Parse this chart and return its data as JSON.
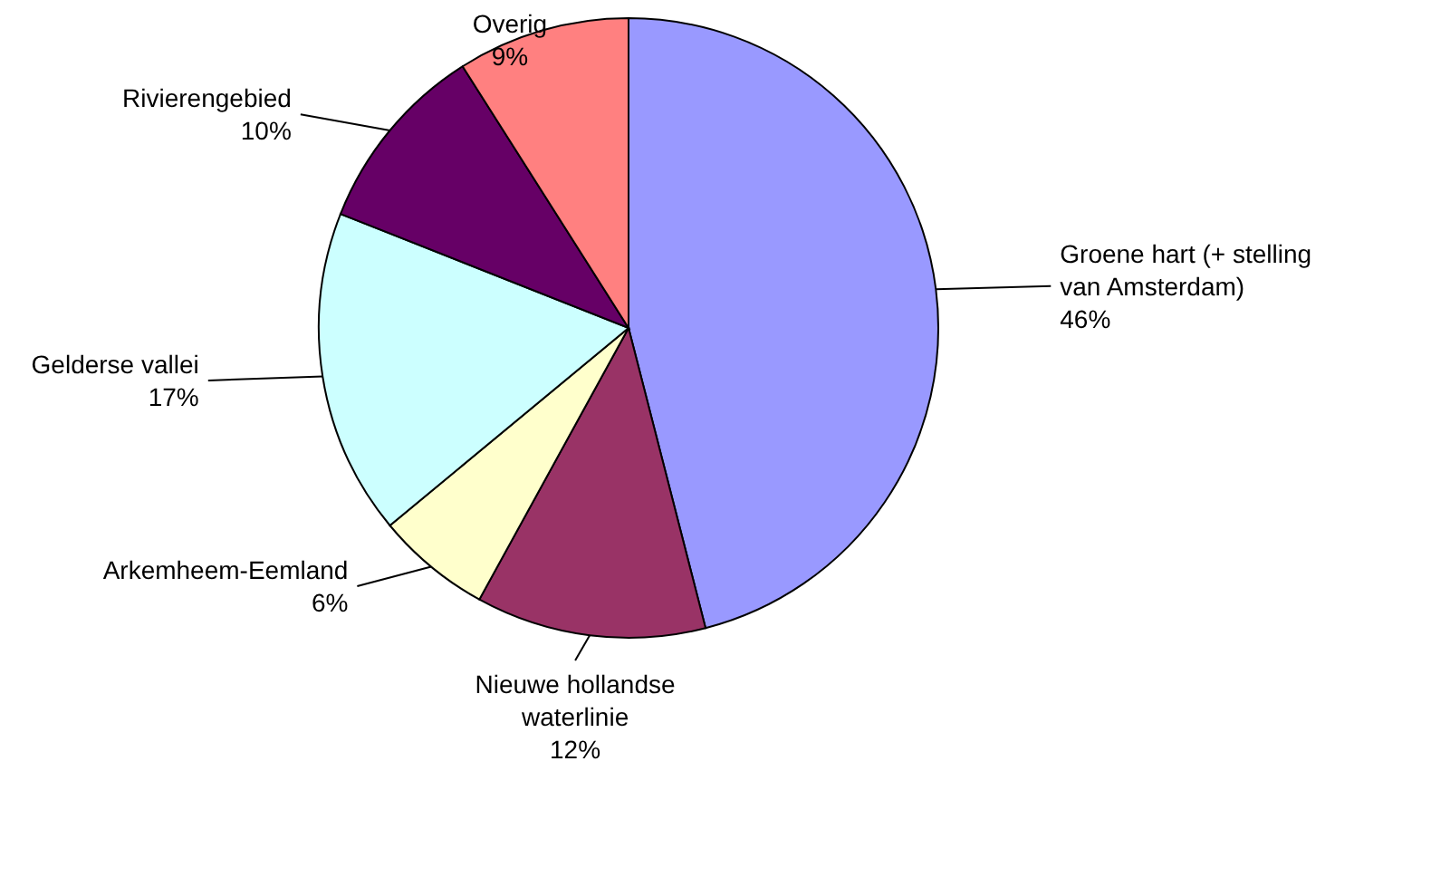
{
  "chart_data": {
    "type": "pie",
    "categories": [
      "Groene hart (+ stelling van Amsterdam)",
      "Nieuwe hollandse waterlinie",
      "Arkemheem-Eemland",
      "Gelderse vallei",
      "Rivierengebied",
      "Overig"
    ],
    "values": [
      46,
      12,
      6,
      17,
      10,
      9
    ],
    "colors": [
      "#9999ff",
      "#993366",
      "#ffffcc",
      "#ccffff",
      "#660066",
      "#ff8080"
    ],
    "value_labels": [
      "46%",
      "12%",
      "6%",
      "17%",
      "10%",
      "9%"
    ]
  }
}
